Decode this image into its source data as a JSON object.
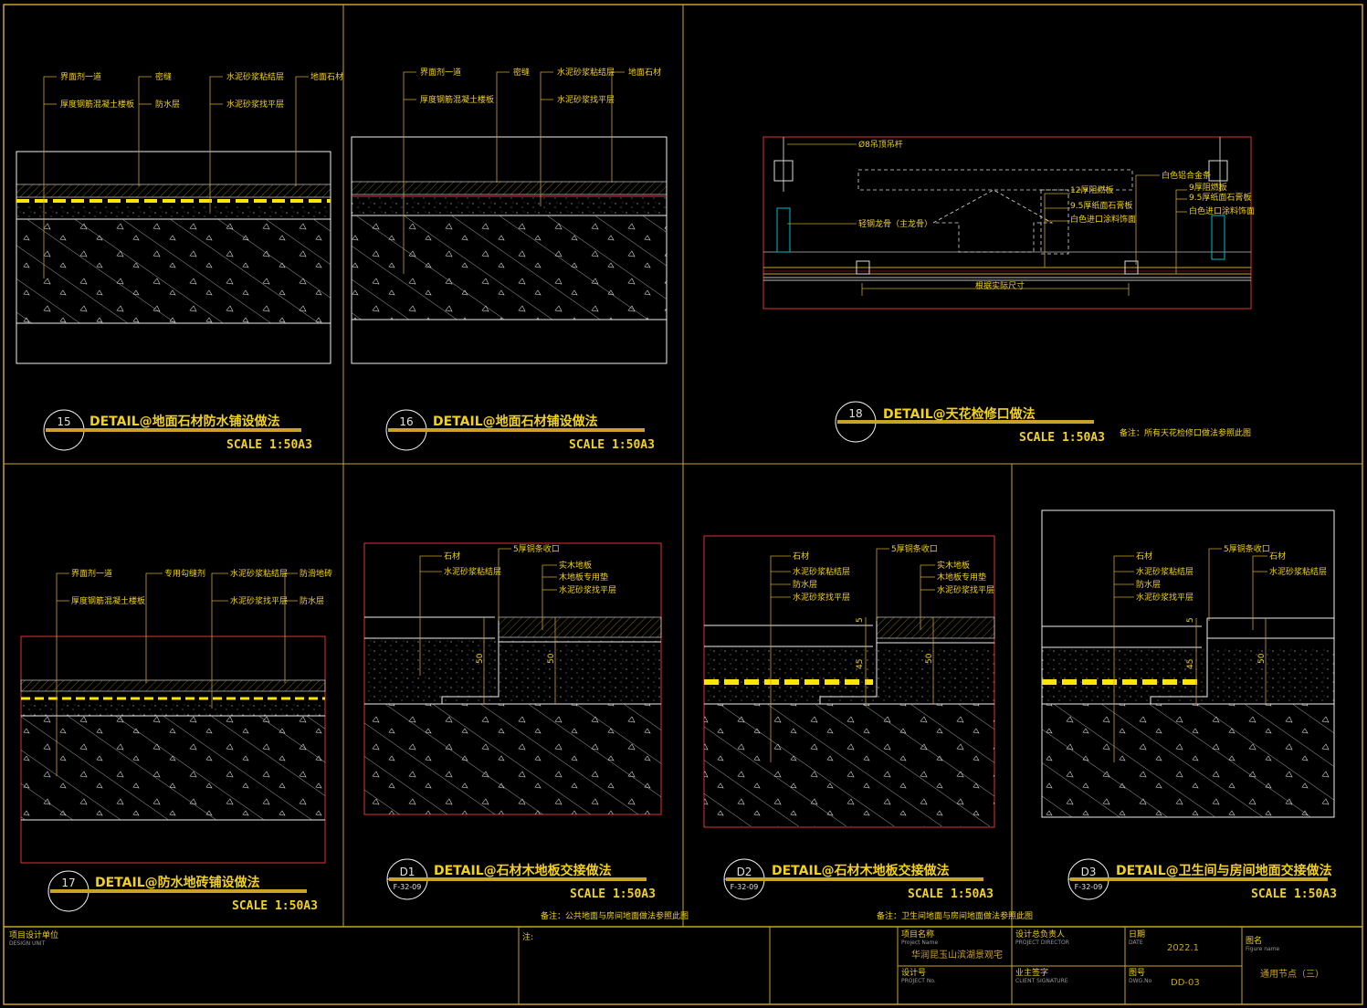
{
  "details": [
    {
      "id": "15",
      "title": "DETAIL@地面石材防水铺设做法",
      "scale": "SCALE 1:50A3",
      "labels": [
        "界面剂一道",
        "厚度钢筋混凝土楼板",
        "密缝",
        "防水层",
        "水泥砂浆粘结层",
        "水泥砂浆找平层",
        "地面石材"
      ]
    },
    {
      "id": "16",
      "title": "DETAIL@地面石材铺设做法",
      "scale": "SCALE 1:50A3",
      "labels": [
        "界面剂一道",
        "厚度钢筋混凝土楼板",
        "密缝",
        "水泥砂浆粘结层",
        "水泥砂浆找平层",
        "地面石材"
      ]
    },
    {
      "id": "18",
      "title": "DETAIL@天花检修口做法",
      "scale": "SCALE 1:50A3",
      "note": "备注：所有天花检修口做法参照此图",
      "labels": [
        "Ø8吊顶吊杆",
        "12厚阻燃板",
        "9.5厚纸面石膏板",
        "白色进口涂料饰面",
        "轻钢龙骨（主龙骨）",
        "白色铝合金条",
        "9厚阻燃板",
        "9.5厚纸面石膏板",
        "白色进口涂料饰面"
      ],
      "dimension": "根据实际尺寸"
    },
    {
      "id": "17",
      "title": "DETAIL@防水地砖铺设做法",
      "scale": "SCALE 1:50A3",
      "labels": [
        "界面剂一道",
        "厚度钢筋混凝土楼板",
        "专用勾缝剂",
        "水泥砂浆粘结层",
        "水泥砂浆找平层",
        "防滑地砖",
        "防水层"
      ]
    },
    {
      "id": "D1",
      "sheet": "F-32-09",
      "title": "DETAIL@石材木地板交接做法",
      "scale": "SCALE 1:50A3",
      "note": "备注：公共地面与房间地面做法参照此图",
      "labels": [
        "石材",
        "水泥砂浆粘结层",
        "5厚铜条收口",
        "实木地板",
        "木地板专用垫",
        "水泥砂浆找平层"
      ],
      "dims": [
        "50",
        "50"
      ]
    },
    {
      "id": "D2",
      "sheet": "F-32-09",
      "title": "DETAIL@石材木地板交接做法",
      "scale": "SCALE 1:50A3",
      "note": "备注：卫生间地面与房间地面做法参照此图",
      "labels": [
        "石材",
        "水泥砂浆粘结层",
        "防水层",
        "水泥砂浆找平层",
        "5厚铜条收口",
        "实木地板",
        "木地板专用垫",
        "水泥砂浆找平层"
      ],
      "dims": [
        "5",
        "45",
        "50"
      ]
    },
    {
      "id": "D3",
      "sheet": "F-32-09",
      "title": "DETAIL@卫生间与房间地面交接做法",
      "scale": "SCALE 1:50A3",
      "labels": [
        "石材",
        "水泥砂浆粘结层",
        "防水层",
        "水泥砂浆找平层",
        "5厚铜条收口",
        "石材",
        "水泥砂浆粘结层"
      ],
      "dims": [
        "5",
        "45",
        "50"
      ]
    }
  ],
  "title_block": {
    "design_unit": "项目设计单位",
    "design_unit_en": "DESIGN UNIT",
    "notes": "注:",
    "project_name": "项目名称",
    "project_name_en": "Project Name",
    "project_name_value": "华润昆玉山滨湖景观宅",
    "project_director": "设计总负责人",
    "project_director_en": "PROJECT DIRECTOR",
    "date_label": "日期",
    "date_en": "DATE",
    "date_value": "2022.1",
    "figure_name": "图名",
    "figure_name_en": "Figure name",
    "figure_name_value": "通用节点（三）",
    "project_no": "设计号",
    "project_no_en": "PROJECT No.",
    "client": "业主签字",
    "client_en": "CLIENT SIGNATURE",
    "drawing_no": "图号",
    "drawing_no_en": "DWG.No",
    "drawing_no_value": "DD-03"
  }
}
